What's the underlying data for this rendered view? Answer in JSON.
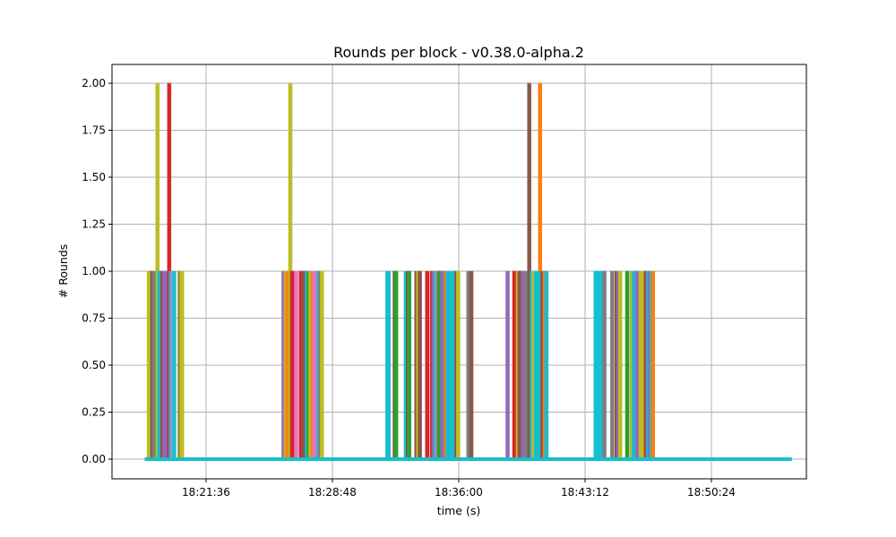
{
  "chart_data": {
    "type": "line",
    "title": "Rounds per block  -  v0.38.0-alpha.2",
    "xlabel": "time (s)",
    "ylabel": "# Rounds",
    "ylim": [
      -0.11,
      2.1
    ],
    "yticks": [
      "0.00",
      "0.25",
      "0.50",
      "0.75",
      "1.00",
      "1.25",
      "1.50",
      "1.75",
      "2.00"
    ],
    "ytick_values": [
      0,
      0.25,
      0.5,
      0.75,
      1.0,
      1.25,
      1.5,
      1.75,
      2.0
    ],
    "xticks": [
      "18:21:36",
      "18:28:48",
      "18:36:00",
      "18:43:12",
      "18:50:24"
    ],
    "xtick_seconds": [
      0,
      432,
      864,
      1296,
      1728
    ],
    "x_range_seconds": [
      -216,
      1944
    ],
    "grid": true,
    "legend": "none",
    "baseline_value": 0,
    "series_note": "Many overlapping per-node series; each spike is one block whose round count was > 0",
    "spikes": [
      {
        "t": -196,
        "v": 1,
        "color": "#bcbd22"
      },
      {
        "t": -190,
        "v": 1,
        "color": "#bcbd22"
      },
      {
        "t": -184,
        "v": 1,
        "color": "#8c564b"
      },
      {
        "t": -178,
        "v": 1,
        "color": "#7f7f7f"
      },
      {
        "t": -166,
        "v": 2,
        "color": "#bcbd22"
      },
      {
        "t": -160,
        "v": 1,
        "color": "#17becf"
      },
      {
        "t": -150,
        "v": 1,
        "color": "#8c564b"
      },
      {
        "t": -142,
        "v": 1,
        "color": "#9467bd"
      },
      {
        "t": -133,
        "v": 1,
        "color": "#9467bd"
      },
      {
        "t": -126,
        "v": 2,
        "color": "#d62728"
      },
      {
        "t": -121,
        "v": 1,
        "color": "#17becf"
      },
      {
        "t": -114,
        "v": 1,
        "color": "#e377c2"
      },
      {
        "t": -109,
        "v": 1,
        "color": "#17becf"
      },
      {
        "t": -90,
        "v": 1,
        "color": "#2ca02c"
      },
      {
        "t": -86,
        "v": 1,
        "color": "#ff7f0e"
      },
      {
        "t": -82,
        "v": 1,
        "color": "#bcbd22"
      },
      {
        "t": 265,
        "v": 1,
        "color": "#9467bd"
      },
      {
        "t": 272,
        "v": 1,
        "color": "#bcbd22"
      },
      {
        "t": 278,
        "v": 1,
        "color": "#ff7f0e"
      },
      {
        "t": 288,
        "v": 2,
        "color": "#bcbd22"
      },
      {
        "t": 294,
        "v": 1,
        "color": "#d62728"
      },
      {
        "t": 303,
        "v": 1,
        "color": "#d62728"
      },
      {
        "t": 308,
        "v": 1,
        "color": "#e377c2"
      },
      {
        "t": 324,
        "v": 1,
        "color": "#d62728"
      },
      {
        "t": 333,
        "v": 1,
        "color": "#8c564b"
      },
      {
        "t": 339,
        "v": 1,
        "color": "#8c564b"
      },
      {
        "t": 345,
        "v": 1,
        "color": "#17becf"
      },
      {
        "t": 351,
        "v": 1,
        "color": "#2ca02c"
      },
      {
        "t": 357,
        "v": 1,
        "color": "#bcbd22"
      },
      {
        "t": 364,
        "v": 1,
        "color": "#ff7f0e"
      },
      {
        "t": 370,
        "v": 1,
        "color": "#e377c2"
      },
      {
        "t": 377,
        "v": 1,
        "color": "#e377c2"
      },
      {
        "t": 385,
        "v": 1,
        "color": "#17becf"
      },
      {
        "t": 390,
        "v": 1,
        "color": "#7f7f7f"
      },
      {
        "t": 396,
        "v": 1,
        "color": "#bcbd22"
      },
      {
        "t": 620,
        "v": 1,
        "color": "#17becf"
      },
      {
        "t": 624,
        "v": 1,
        "color": "#17becf"
      },
      {
        "t": 645,
        "v": 1,
        "color": "#8c564b"
      },
      {
        "t": 650,
        "v": 1,
        "color": "#2ca02c"
      },
      {
        "t": 683,
        "v": 1,
        "color": "#17becf"
      },
      {
        "t": 690,
        "v": 1,
        "color": "#8c564b"
      },
      {
        "t": 695,
        "v": 1,
        "color": "#2ca02c"
      },
      {
        "t": 719,
        "v": 1,
        "color": "#8c564b"
      },
      {
        "t": 725,
        "v": 1,
        "color": "#bcbd22"
      },
      {
        "t": 731,
        "v": 1,
        "color": "#8c564b"
      },
      {
        "t": 756,
        "v": 1,
        "color": "#d62728"
      },
      {
        "t": 772,
        "v": 1,
        "color": "#d62728"
      },
      {
        "t": 778,
        "v": 1,
        "color": "#9467bd"
      },
      {
        "t": 784,
        "v": 1,
        "color": "#17becf"
      },
      {
        "t": 790,
        "v": 1,
        "color": "#e377c2"
      },
      {
        "t": 796,
        "v": 1,
        "color": "#2ca02c"
      },
      {
        "t": 802,
        "v": 1,
        "color": "#2ca02c"
      },
      {
        "t": 808,
        "v": 1,
        "color": "#9467bd"
      },
      {
        "t": 820,
        "v": 1,
        "color": "#ff7f0e"
      },
      {
        "t": 826,
        "v": 1,
        "color": "#17becf"
      },
      {
        "t": 832,
        "v": 1,
        "color": "#17becf"
      },
      {
        "t": 845,
        "v": 1,
        "color": "#17becf"
      },
      {
        "t": 856,
        "v": 1,
        "color": "#8c564b"
      },
      {
        "t": 862,
        "v": 1,
        "color": "#bcbd22"
      },
      {
        "t": 897,
        "v": 1,
        "color": "#7f7f7f"
      },
      {
        "t": 907,
        "v": 1,
        "color": "#8c564b"
      },
      {
        "t": 1031,
        "v": 1,
        "color": "#9467bd"
      },
      {
        "t": 1054,
        "v": 1,
        "color": "#d62728"
      },
      {
        "t": 1060,
        "v": 1,
        "color": "#d62728"
      },
      {
        "t": 1066,
        "v": 1,
        "color": "#bcbd22"
      },
      {
        "t": 1072,
        "v": 1,
        "color": "#8c564b"
      },
      {
        "t": 1078,
        "v": 1,
        "color": "#8c564b"
      },
      {
        "t": 1084,
        "v": 1,
        "color": "#9467bd"
      },
      {
        "t": 1094,
        "v": 1,
        "color": "#7f7f7f"
      },
      {
        "t": 1105,
        "v": 2,
        "color": "#8c564b"
      },
      {
        "t": 1114,
        "v": 1,
        "color": "#17becf"
      },
      {
        "t": 1120,
        "v": 1,
        "color": "#bcbd22"
      },
      {
        "t": 1128,
        "v": 1,
        "color": "#17becf"
      },
      {
        "t": 1142,
        "v": 2,
        "color": "#ff7f0e"
      },
      {
        "t": 1138,
        "v": 1,
        "color": "#17becf"
      },
      {
        "t": 1150,
        "v": 1,
        "color": "#8c564b"
      },
      {
        "t": 1158,
        "v": 1,
        "color": "#ff7f0e"
      },
      {
        "t": 1164,
        "v": 1,
        "color": "#17becf"
      },
      {
        "t": 1332,
        "v": 1,
        "color": "#17becf"
      },
      {
        "t": 1338,
        "v": 1,
        "color": "#17becf"
      },
      {
        "t": 1344,
        "v": 1,
        "color": "#17becf"
      },
      {
        "t": 1355,
        "v": 1,
        "color": "#17becf"
      },
      {
        "t": 1362,
        "v": 1,
        "color": "#7f7f7f"
      },
      {
        "t": 1389,
        "v": 1,
        "color": "#7f7f7f"
      },
      {
        "t": 1404,
        "v": 1,
        "color": "#8c564b"
      },
      {
        "t": 1410,
        "v": 1,
        "color": "#9467bd"
      },
      {
        "t": 1416,
        "v": 1,
        "color": "#bcbd22"
      },
      {
        "t": 1440,
        "v": 1,
        "color": "#2ca02c"
      },
      {
        "t": 1455,
        "v": 1,
        "color": "#bcbd22"
      },
      {
        "t": 1462,
        "v": 1,
        "color": "#17becf"
      },
      {
        "t": 1468,
        "v": 1,
        "color": "#17becf"
      },
      {
        "t": 1474,
        "v": 1,
        "color": "#9467bd"
      },
      {
        "t": 1480,
        "v": 1,
        "color": "#9467bd"
      },
      {
        "t": 1486,
        "v": 1,
        "color": "#bcbd22"
      },
      {
        "t": 1492,
        "v": 1,
        "color": "#bcbd22"
      },
      {
        "t": 1498,
        "v": 1,
        "color": "#bcbd22"
      },
      {
        "t": 1504,
        "v": 1,
        "color": "#d62728"
      },
      {
        "t": 1510,
        "v": 1,
        "color": "#17becf"
      },
      {
        "t": 1516,
        "v": 1,
        "color": "#9467bd"
      },
      {
        "t": 1522,
        "v": 1,
        "color": "#17becf"
      },
      {
        "t": 1528,
        "v": 1,
        "color": "#ff7f0e"
      }
    ],
    "baseline_t_range": [
      -210,
      2000
    ]
  },
  "colors": {
    "axes": "#000000",
    "grid": "#b0b0b0",
    "baseline": "#17becf",
    "background": "#ffffff"
  }
}
